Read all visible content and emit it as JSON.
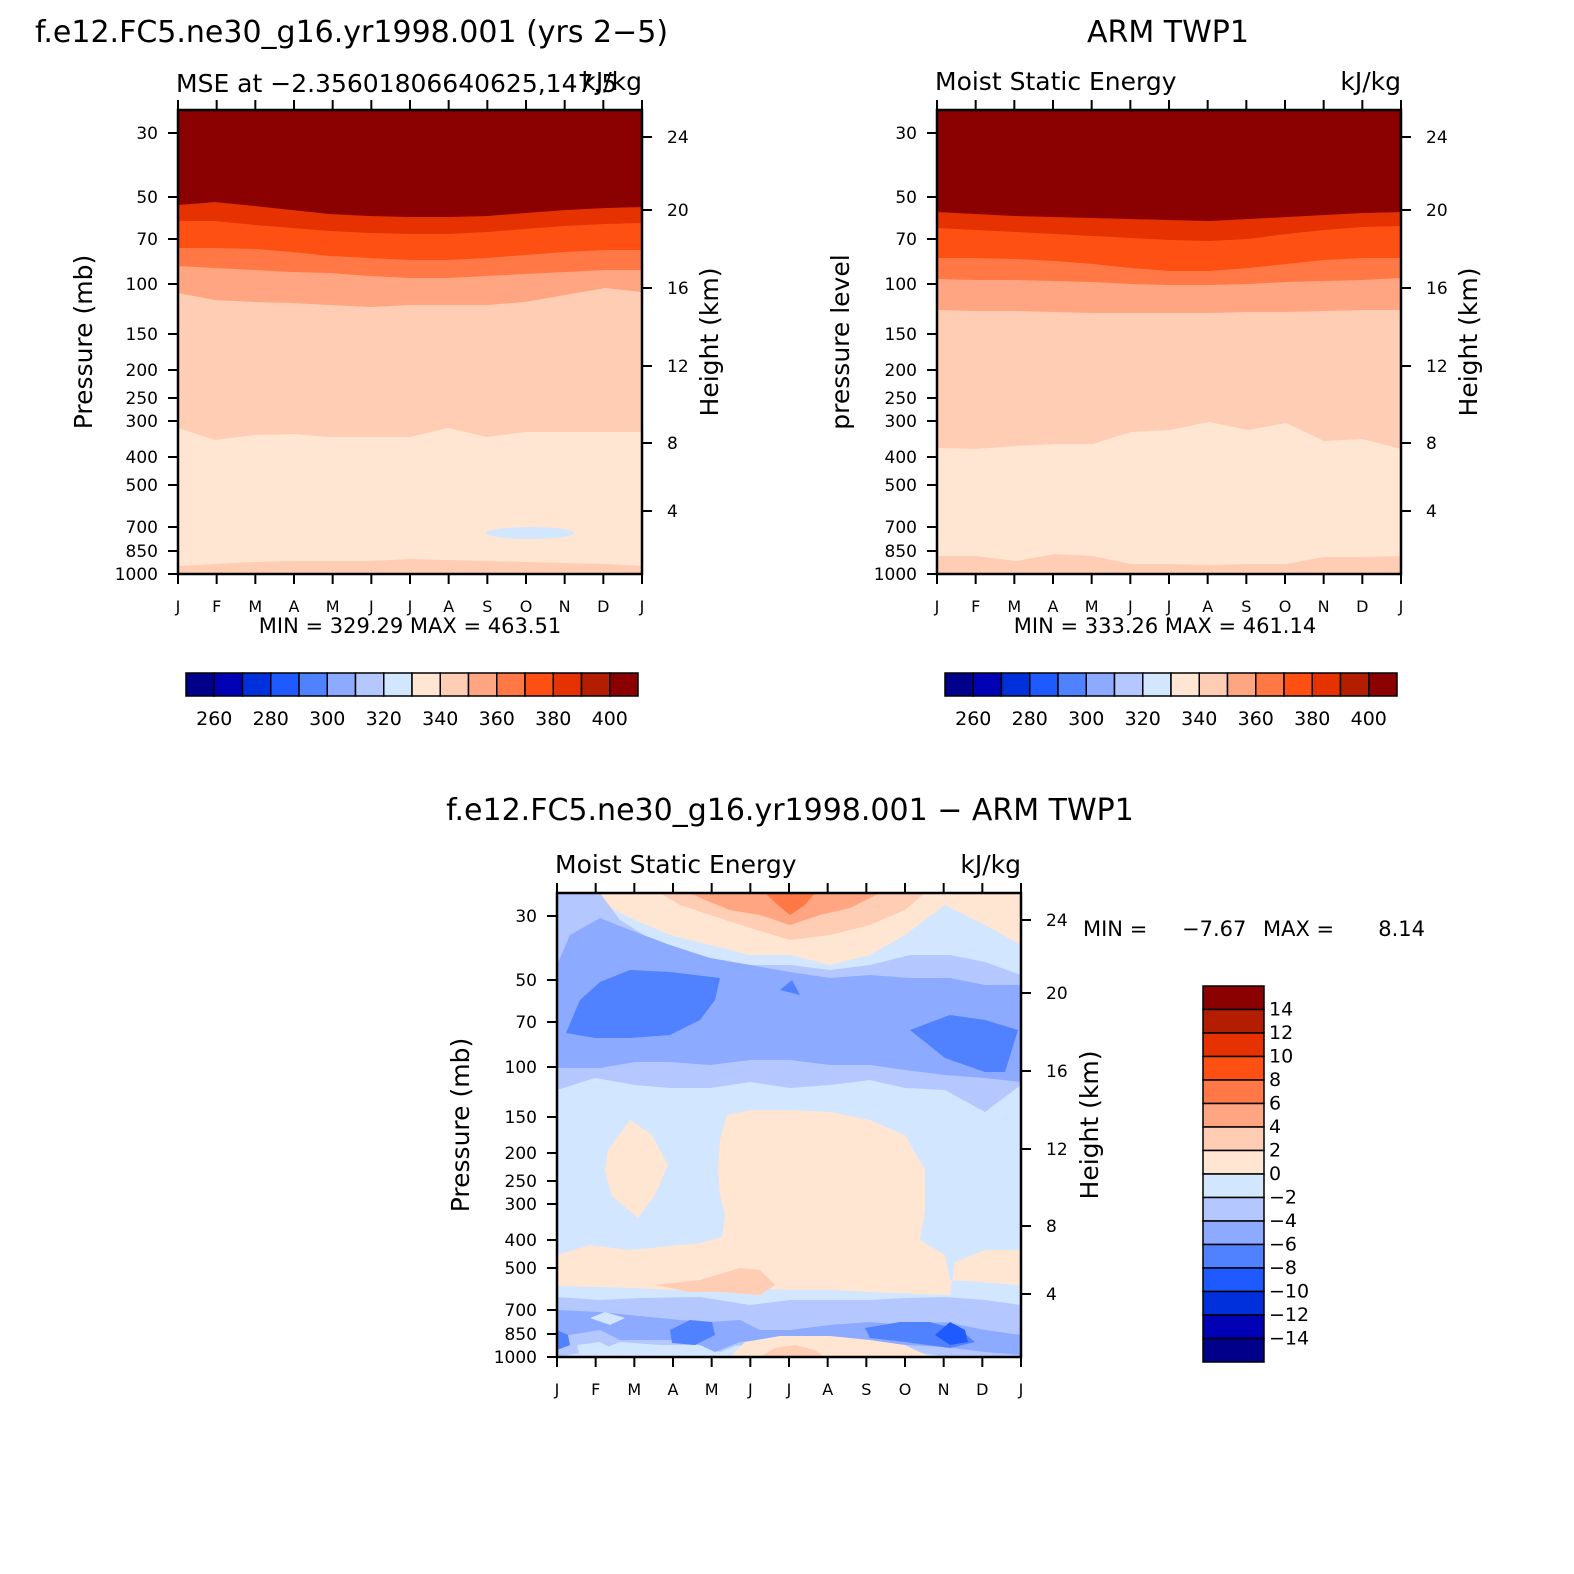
{
  "colors": {
    "abs_scale": [
      "#00008b",
      "#0000b4",
      "#0030dc",
      "#1e5aff",
      "#5082ff",
      "#8caaff",
      "#b4c8ff",
      "#d2e6ff",
      "#ffe6d2",
      "#ffcdb4",
      "#ffa582",
      "#ff7846",
      "#ff5014",
      "#e63200",
      "#b41e00",
      "#8b0000"
    ],
    "diff_scale": [
      "#00008b",
      "#0000b4",
      "#0030dc",
      "#1e5aff",
      "#5082ff",
      "#8caaff",
      "#b4c8ff",
      "#d2e6ff",
      "#ffe6d2",
      "#ffcdb4",
      "#ffa582",
      "#ff7846",
      "#ff5014",
      "#e63200",
      "#b41e00",
      "#8b0000"
    ]
  },
  "chart_data": [
    {
      "type": "heatmap",
      "id": "model",
      "title": "f.e12.FC5.ne30_g16.yr1998.001 (yrs 2−5)",
      "left_string": "MSE at −2.356018066406​25,147.5",
      "right_string": "kJ/kg",
      "ylabel": "Pressure (mb)",
      "ylabel_right": "Height (km)",
      "stats": "MIN =  329.29  MAX =  463.51",
      "x_ticks": [
        "J",
        "F",
        "M",
        "A",
        "M",
        "J",
        "J",
        "A",
        "S",
        "O",
        "N",
        "D",
        "J"
      ],
      "y_ticks": [
        "30",
        "50",
        "70",
        "100",
        "150",
        "200",
        "250",
        "300",
        "400",
        "500",
        "700",
        "850",
        "1000"
      ],
      "y_ticks_right": [
        "24",
        "20",
        "16",
        "12",
        "8",
        "4"
      ],
      "colorbar_labels": [
        "260",
        "280",
        "300",
        "320",
        "340",
        "360",
        "380",
        "400"
      ],
      "contour_levels": [
        260,
        270,
        280,
        290,
        300,
        310,
        320,
        330,
        340,
        350,
        360,
        370,
        380,
        390,
        400
      ],
      "x": [
        "J",
        "F",
        "M",
        "A",
        "M",
        "J",
        "J",
        "A",
        "S",
        "O",
        "N",
        "D",
        "J"
      ],
      "boundaries_mb": {
        "400": [
          56,
          53,
          54,
          55,
          56,
          57,
          58,
          58,
          58,
          57,
          56,
          55,
          55
        ],
        "390": [
          62,
          61,
          62,
          63,
          64,
          65,
          66,
          66,
          66,
          65,
          64,
          63,
          63
        ],
        "380": [
          70,
          69,
          70,
          71,
          72,
          73,
          74,
          74,
          74,
          73,
          72,
          71,
          71
        ],
        "370": [
          82,
          81,
          82,
          83,
          84,
          85,
          86,
          86,
          86,
          85,
          84,
          83,
          83
        ],
        "360": [
          113,
          112,
          114,
          115,
          116,
          118,
          119,
          120,
          120,
          118,
          116,
          114,
          114
        ],
        "340": [
          318,
          345,
          335,
          333,
          336,
          337,
          337,
          322,
          331,
          324,
          323,
          322,
          320
        ],
        "330": [
          950,
          940,
          930,
          930,
          930,
          925,
          925,
          930,
          930,
          935,
          940,
          940,
          950
        ]
      },
      "anomaly": {
        "label": "320–330 patch",
        "months": [
          "S",
          "O",
          "N"
        ],
        "pressure_mb": 700
      }
    },
    {
      "type": "heatmap",
      "id": "obs",
      "title": "ARM TWP1",
      "left_string": "Moist Static Energy",
      "right_string": "kJ/kg",
      "ylabel": "pressure level",
      "ylabel_right": "Height (km)",
      "stats": "MIN =  333.26  MAX =  461.14",
      "x_ticks": [
        "J",
        "F",
        "M",
        "A",
        "M",
        "J",
        "J",
        "A",
        "S",
        "O",
        "N",
        "D",
        "J"
      ],
      "y_ticks": [
        "30",
        "50",
        "70",
        "100",
        "150",
        "200",
        "250",
        "300",
        "400",
        "500",
        "700",
        "850",
        "1000"
      ],
      "y_ticks_right": [
        "24",
        "20",
        "16",
        "12",
        "8",
        "4"
      ],
      "colorbar_labels": [
        "260",
        "280",
        "300",
        "320",
        "340",
        "360",
        "380",
        "400"
      ],
      "contour_levels": [
        260,
        270,
        280,
        290,
        300,
        310,
        320,
        330,
        340,
        350,
        360,
        370,
        380,
        390,
        400
      ],
      "x": [
        "J",
        "F",
        "M",
        "A",
        "M",
        "J",
        "J",
        "A",
        "S",
        "O",
        "N",
        "D",
        "J"
      ],
      "boundaries_mb": {
        "400": [
          58,
          59,
          60,
          61,
          62,
          63,
          64,
          65,
          64,
          63,
          62,
          61,
          60
        ],
        "390": [
          67,
          68,
          69,
          70,
          72,
          73,
          74,
          75,
          74,
          72,
          70,
          68,
          67
        ],
        "380": [
          78,
          79,
          80,
          82,
          84,
          86,
          88,
          90,
          88,
          85,
          82,
          80,
          79
        ],
        "370": [
          95,
          96,
          97,
          98,
          99,
          100,
          101,
          102,
          101,
          100,
          99,
          98,
          97
        ],
        "360": [
          130,
          131,
          132,
          133,
          134,
          135,
          135,
          135,
          135,
          134,
          133,
          132,
          131
        ],
        "340": [
          360,
          355,
          350,
          348,
          350,
          355,
          320,
          305,
          310,
          300,
          345,
          340,
          370
        ],
        "330": [
          840,
          850,
          860,
          820,
          830,
          890,
          890,
          880,
          890,
          890,
          850,
          850,
          850
        ]
      }
    },
    {
      "type": "heatmap",
      "id": "diff",
      "title": "f.e12.FC5.ne30_g16.yr1998.001 − ARM TWP1",
      "left_string": "Moist Static Energy",
      "right_string": "kJ/kg",
      "ylabel": "Pressure (mb)",
      "ylabel_right": "Height (km)",
      "stats_min_label": "MIN =",
      "stats_min": "−7.67",
      "stats_max_label": "MAX =",
      "stats_max": "8.14",
      "x_ticks": [
        "J",
        "F",
        "M",
        "A",
        "M",
        "J",
        "J",
        "A",
        "S",
        "O",
        "N",
        "D",
        "J"
      ],
      "y_ticks": [
        "30",
        "50",
        "70",
        "100",
        "150",
        "200",
        "250",
        "300",
        "400",
        "500",
        "700",
        "850",
        "1000"
      ],
      "y_ticks_right": [
        "24",
        "20",
        "16",
        "12",
        "8",
        "4"
      ],
      "colorbar_labels": [
        "14",
        "12",
        "10",
        "8",
        "6",
        "4",
        "2",
        "0",
        "−2",
        "−4",
        "−6",
        "−8",
        "−10",
        "−12",
        "−14"
      ],
      "contour_levels": [
        -14,
        -12,
        -10,
        -8,
        -6,
        -4,
        -2,
        0,
        2,
        4,
        6,
        8,
        10,
        12,
        14
      ],
      "x": [
        "J",
        "F",
        "M",
        "A",
        "M",
        "J",
        "J",
        "A",
        "S",
        "O",
        "N",
        "D",
        "J"
      ],
      "bands": [
        {
          "name": "upper positive",
          "range": [
            0,
            4
          ],
          "months": [
            "M",
            "A",
            "M",
            "J",
            "J",
            "A",
            "S",
            "O"
          ],
          "pressure_mb": [
            25,
            35
          ]
        },
        {
          "name": "upper negative core",
          "range": [
            -8,
            -6
          ],
          "months": [
            "F",
            "M",
            "A"
          ],
          "pressure_mb": [
            45,
            75
          ]
        },
        {
          "name": "upper negative core east",
          "range": [
            -8,
            -6
          ],
          "months": [
            "N",
            "D"
          ],
          "pressure_mb": [
            70,
            100
          ]
        },
        {
          "name": "mid positive",
          "range": [
            0,
            2
          ],
          "months": [
            "J",
            "J",
            "A",
            "S"
          ],
          "pressure_mb": [
            140,
            500
          ]
        },
        {
          "name": "low negative",
          "range": [
            -6,
            -4
          ],
          "months": [
            "F",
            "A",
            "N",
            "D"
          ],
          "pressure_mb": [
            650,
            850
          ]
        },
        {
          "name": "surface positive",
          "range": [
            0,
            2
          ],
          "months": [
            "J",
            "J",
            "A"
          ],
          "pressure_mb": [
            900,
            1000
          ]
        }
      ]
    }
  ]
}
